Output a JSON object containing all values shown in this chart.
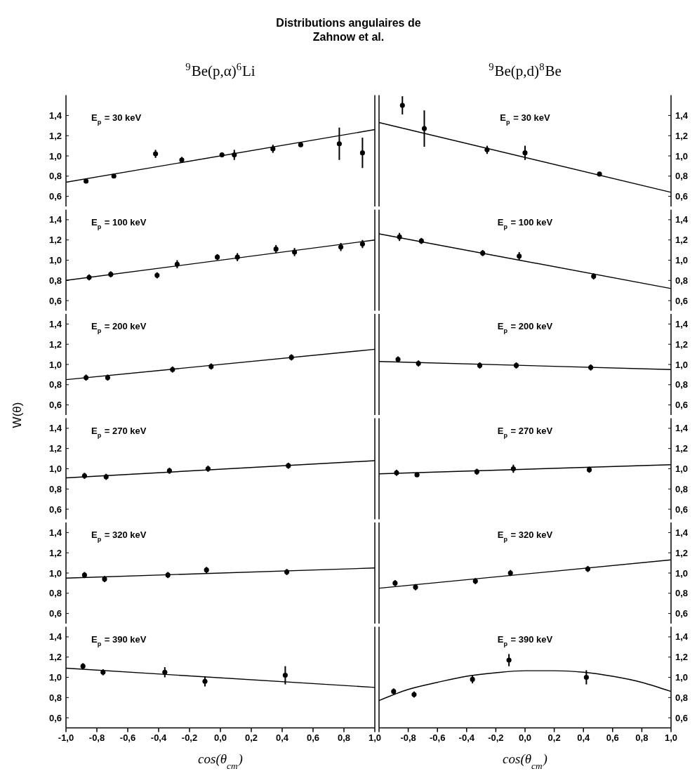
{
  "chart_data": [
    {
      "type": "scatter",
      "title": "E$_{p}$ = 30 keV",
      "annotations": [
        "Distributions angulaires de\nZahnow et al.",
        "$^{9}$Be(p,α)$^{6}$Li"
      ],
      "xlim": [
        -1,
        1
      ],
      "ylim": [
        0.5,
        1.6
      ],
      "yticks": [
        {
          "value": 0.6,
          "label": "0,6"
        },
        {
          "value": 0.8,
          "label": "0,8"
        },
        {
          "value": 1.0,
          "label": "1,0"
        },
        {
          "value": 1.2,
          "label": "1,2"
        },
        {
          "value": 1.4,
          "label": "1,4"
        }
      ],
      "tick_labels": "y",
      "series": [
        {
          "marker": "circle",
          "color": "#000000",
          "x": [
            -0.87,
            -0.69,
            -0.42,
            -0.25,
            0.01,
            0.09,
            0.34,
            0.52,
            0.77,
            0.92
          ],
          "values": [
            0.75,
            0.8,
            1.02,
            0.96,
            1.01,
            1.01,
            1.07,
            1.11,
            1.12,
            1.03
          ],
          "errors": [
            0.02,
            0.02,
            0.04,
            0.03,
            0.02,
            0.05,
            0.04,
            0.02,
            0.16,
            0.15
          ]
        },
        {
          "type": "line",
          "color": "#000000",
          "x": [
            -1,
            1
          ],
          "values": [
            0.74,
            1.26
          ]
        }
      ]
    },
    {
      "type": "scatter",
      "title": "E$_{p}$ = 30 keV",
      "annotations": [
        "$^{9}$Be(p,d)$^{8}$Be"
      ],
      "xlim": [
        -1,
        1
      ],
      "ylim": [
        0.5,
        1.6
      ],
      "yticks": [
        {
          "value": 0.6,
          "label": "0,6"
        },
        {
          "value": 0.8,
          "label": "0,8"
        },
        {
          "value": 1.0,
          "label": "1,0"
        },
        {
          "value": 1.2,
          "label": "1,2"
        },
        {
          "value": 1.4,
          "label": "1,4"
        }
      ],
      "tick_labels": "y",
      "series": [
        {
          "marker": "circle",
          "color": "#000000",
          "x": [
            -0.84,
            -0.69,
            -0.26,
            0.0,
            0.51
          ],
          "values": [
            1.5,
            1.27,
            1.06,
            1.03,
            0.82
          ],
          "errors": [
            0.09,
            0.18,
            0.04,
            0.07,
            0.02
          ]
        },
        {
          "type": "line",
          "color": "#000000",
          "x": [
            -1,
            1
          ],
          "values": [
            1.33,
            0.64
          ]
        }
      ]
    },
    {
      "type": "scatter",
      "title": "E$_{p}$ = 100 keV",
      "xlim": [
        -1,
        1
      ],
      "ylim": [
        0.5,
        1.5
      ],
      "yticks": [
        {
          "value": 0.6,
          "label": "0,6"
        },
        {
          "value": 0.8,
          "label": "0,8"
        },
        {
          "value": 1.0,
          "label": "1,0"
        },
        {
          "value": 1.2,
          "label": "1,2"
        },
        {
          "value": 1.4,
          "label": "1,4"
        }
      ],
      "tick_labels": "y",
      "series": [
        {
          "marker": "circle",
          "color": "#000000",
          "x": [
            -0.85,
            -0.71,
            -0.41,
            -0.28,
            -0.02,
            0.11,
            0.36,
            0.48,
            0.78,
            0.92
          ],
          "values": [
            0.83,
            0.86,
            0.85,
            0.96,
            1.03,
            1.03,
            1.11,
            1.08,
            1.13,
            1.16
          ],
          "errors": [
            0.03,
            0.03,
            0.03,
            0.04,
            0.03,
            0.04,
            0.04,
            0.04,
            0.04,
            0.04
          ]
        },
        {
          "type": "line",
          "color": "#000000",
          "x": [
            -1,
            1
          ],
          "values": [
            0.8,
            1.2
          ]
        }
      ]
    },
    {
      "type": "scatter",
      "title": "E$_{p}$ = 100 keV",
      "xlim": [
        -1,
        1
      ],
      "ylim": [
        0.5,
        1.5
      ],
      "yticks": [
        {
          "value": 0.6,
          "label": "0,6"
        },
        {
          "value": 0.8,
          "label": "0,8"
        },
        {
          "value": 1.0,
          "label": "1,0"
        },
        {
          "value": 1.2,
          "label": "1,2"
        },
        {
          "value": 1.4,
          "label": "1,4"
        }
      ],
      "tick_labels": "y",
      "series": [
        {
          "marker": "circle",
          "color": "#000000",
          "x": [
            -0.86,
            -0.71,
            -0.29,
            -0.04,
            0.47
          ],
          "values": [
            1.23,
            1.19,
            1.07,
            1.04,
            0.84
          ],
          "errors": [
            0.04,
            0.03,
            0.03,
            0.04,
            0.03
          ]
        },
        {
          "type": "line",
          "color": "#000000",
          "x": [
            -1,
            1
          ],
          "values": [
            1.26,
            0.72
          ]
        }
      ]
    },
    {
      "type": "scatter",
      "title": "E$_{p}$ = 200 keV",
      "ylabel": "W(θ)",
      "xlim": [
        -1,
        1
      ],
      "ylim": [
        0.5,
        1.5
      ],
      "yticks": [
        {
          "value": 0.6,
          "label": "0,6"
        },
        {
          "value": 0.8,
          "label": "0,8"
        },
        {
          "value": 1.0,
          "label": "1,0"
        },
        {
          "value": 1.2,
          "label": "1,2"
        },
        {
          "value": 1.4,
          "label": "1,4"
        }
      ],
      "tick_labels": "y",
      "series": [
        {
          "marker": "circle",
          "color": "#000000",
          "x": [
            -0.87,
            -0.73,
            -0.31,
            -0.06,
            0.46
          ],
          "values": [
            0.87,
            0.87,
            0.95,
            0.98,
            1.07
          ],
          "errors": [
            0.03,
            0.03,
            0.03,
            0.03,
            0.03
          ]
        },
        {
          "type": "line",
          "color": "#000000",
          "x": [
            -1,
            1
          ],
          "values": [
            0.85,
            1.15
          ]
        }
      ]
    },
    {
      "type": "scatter",
      "title": "E$_{p}$ = 200 keV",
      "xlim": [
        -1,
        1
      ],
      "ylim": [
        0.5,
        1.5
      ],
      "yticks": [
        {
          "value": 0.6,
          "label": "0,6"
        },
        {
          "value": 0.8,
          "label": "0,8"
        },
        {
          "value": 1.0,
          "label": "1,0"
        },
        {
          "value": 1.2,
          "label": "1,2"
        },
        {
          "value": 1.4,
          "label": "1,4"
        }
      ],
      "tick_labels": "y",
      "series": [
        {
          "marker": "circle",
          "color": "#000000",
          "x": [
            -0.87,
            -0.73,
            -0.31,
            -0.06,
            0.45
          ],
          "values": [
            1.05,
            1.01,
            0.99,
            0.99,
            0.97
          ],
          "errors": [
            0.03,
            0.03,
            0.03,
            0.03,
            0.03
          ]
        },
        {
          "type": "line",
          "color": "#000000",
          "x": [
            -1,
            1
          ],
          "values": [
            1.03,
            0.95
          ]
        }
      ]
    },
    {
      "type": "scatter",
      "title": "E$_{p}$ = 270 keV",
      "xlim": [
        -1,
        1
      ],
      "ylim": [
        0.5,
        1.5
      ],
      "yticks": [
        {
          "value": 0.6,
          "label": "0,6"
        },
        {
          "value": 0.8,
          "label": "0,8"
        },
        {
          "value": 1.0,
          "label": "1,0"
        },
        {
          "value": 1.2,
          "label": "1,2"
        },
        {
          "value": 1.4,
          "label": "1,4"
        }
      ],
      "tick_labels": "y",
      "series": [
        {
          "marker": "circle",
          "color": "#000000",
          "x": [
            -0.88,
            -0.74,
            -0.33,
            -0.08,
            0.44
          ],
          "values": [
            0.93,
            0.92,
            0.98,
            1.0,
            1.03
          ],
          "errors": [
            0.03,
            0.03,
            0.03,
            0.03,
            0.03
          ]
        },
        {
          "type": "line",
          "color": "#000000",
          "x": [
            -1,
            1
          ],
          "values": [
            0.91,
            1.08
          ]
        }
      ]
    },
    {
      "type": "scatter",
      "title": "E$_{p}$ = 270 keV",
      "xlim": [
        -1,
        1
      ],
      "ylim": [
        0.5,
        1.5
      ],
      "yticks": [
        {
          "value": 0.6,
          "label": "0,6"
        },
        {
          "value": 0.8,
          "label": "0,8"
        },
        {
          "value": 1.0,
          "label": "1,0"
        },
        {
          "value": 1.2,
          "label": "1,2"
        },
        {
          "value": 1.4,
          "label": "1,4"
        }
      ],
      "tick_labels": "y",
      "series": [
        {
          "marker": "circle",
          "color": "#000000",
          "x": [
            -0.88,
            -0.74,
            -0.33,
            -0.08,
            0.44
          ],
          "values": [
            0.96,
            0.94,
            0.97,
            1.0,
            0.99
          ],
          "errors": [
            0.03,
            0.02,
            0.03,
            0.04,
            0.03
          ]
        },
        {
          "type": "line",
          "color": "#000000",
          "x": [
            -1,
            1
          ],
          "values": [
            0.95,
            1.04
          ]
        }
      ]
    },
    {
      "type": "scatter",
      "title": "E$_{p}$ = 320 keV",
      "xlim": [
        -1,
        1
      ],
      "ylim": [
        0.5,
        1.5
      ],
      "yticks": [
        {
          "value": 0.6,
          "label": "0,6"
        },
        {
          "value": 0.8,
          "label": "0,8"
        },
        {
          "value": 1.0,
          "label": "1,0"
        },
        {
          "value": 1.2,
          "label": "1,2"
        },
        {
          "value": 1.4,
          "label": "1,4"
        }
      ],
      "tick_labels": "y",
      "series": [
        {
          "marker": "circle",
          "color": "#000000",
          "x": [
            -0.88,
            -0.75,
            -0.34,
            -0.09,
            0.43
          ],
          "values": [
            0.98,
            0.94,
            0.98,
            1.03,
            1.01
          ],
          "errors": [
            0.03,
            0.03,
            0.03,
            0.03,
            0.03
          ]
        },
        {
          "type": "line",
          "color": "#000000",
          "x": [
            -1,
            1
          ],
          "values": [
            0.95,
            1.05
          ]
        }
      ]
    },
    {
      "type": "scatter",
      "title": "E$_{p}$ = 320 keV",
      "xlim": [
        -1,
        1
      ],
      "ylim": [
        0.5,
        1.5
      ],
      "yticks": [
        {
          "value": 0.6,
          "label": "0,6"
        },
        {
          "value": 0.8,
          "label": "0,8"
        },
        {
          "value": 1.0,
          "label": "1,0"
        },
        {
          "value": 1.2,
          "label": "1,2"
        },
        {
          "value": 1.4,
          "label": "1,4"
        }
      ],
      "tick_labels": "y",
      "series": [
        {
          "marker": "circle",
          "color": "#000000",
          "x": [
            -0.89,
            -0.75,
            -0.34,
            -0.1,
            0.43
          ],
          "values": [
            0.9,
            0.86,
            0.92,
            1.0,
            1.04
          ],
          "errors": [
            0.03,
            0.03,
            0.03,
            0.03,
            0.03
          ]
        },
        {
          "type": "line",
          "color": "#000000",
          "x": [
            -1,
            1
          ],
          "values": [
            0.85,
            1.13
          ]
        }
      ]
    },
    {
      "type": "scatter",
      "title": "E$_{p}$ = 390 keV",
      "xlabel": "cos(θ$_{cm}$)",
      "xlim": [
        -1,
        1
      ],
      "ylim": [
        0.5,
        1.5
      ],
      "xticks": [
        {
          "value": -1,
          "label": "-1,0"
        },
        {
          "value": -0.8,
          "label": "-0,8"
        },
        {
          "value": -0.6,
          "label": "-0,6"
        },
        {
          "value": -0.4,
          "label": "-0,4"
        },
        {
          "value": -0.2,
          "label": "-0,2"
        },
        {
          "value": 0,
          "label": "0,0"
        },
        {
          "value": 0.2,
          "label": "0,2"
        },
        {
          "value": 0.4,
          "label": "0,4"
        },
        {
          "value": 0.6,
          "label": "0,6"
        },
        {
          "value": 0.8,
          "label": "0,8"
        },
        {
          "value": 1,
          "label": "1,0"
        }
      ],
      "yticks": [
        {
          "value": 0.6,
          "label": "0,6"
        },
        {
          "value": 0.8,
          "label": "0,8"
        },
        {
          "value": 1.0,
          "label": "1,0"
        },
        {
          "value": 1.2,
          "label": "1,2"
        },
        {
          "value": 1.4,
          "label": "1,4"
        }
      ],
      "series": [
        {
          "marker": "circle",
          "color": "#000000",
          "x": [
            -0.89,
            -0.76,
            -0.36,
            -0.1,
            0.42
          ],
          "values": [
            1.11,
            1.05,
            1.05,
            0.96,
            1.02
          ],
          "errors": [
            0.03,
            0.03,
            0.05,
            0.05,
            0.09
          ]
        },
        {
          "type": "line",
          "color": "#000000",
          "x": [
            -1,
            1
          ],
          "values": [
            1.09,
            0.9
          ]
        }
      ]
    },
    {
      "type": "scatter",
      "title": "E$_{p}$ = 390 keV",
      "xlabel": "cos(θ$_{cm}$)",
      "xlim": [
        -1,
        1
      ],
      "ylim": [
        0.5,
        1.5
      ],
      "xticks": [
        {
          "value": -1,
          "label": null
        },
        {
          "value": -0.8,
          "label": "-0,8"
        },
        {
          "value": -0.6,
          "label": "-0,6"
        },
        {
          "value": -0.4,
          "label": "-0,4"
        },
        {
          "value": -0.2,
          "label": "-0,2"
        },
        {
          "value": 0,
          "label": "0,0"
        },
        {
          "value": 0.2,
          "label": "0,2"
        },
        {
          "value": 0.4,
          "label": "0,4"
        },
        {
          "value": 0.6,
          "label": "0,6"
        },
        {
          "value": 0.8,
          "label": "0,8"
        },
        {
          "value": 1,
          "label": "1,0"
        }
      ],
      "yticks": [
        {
          "value": 0.6,
          "label": "0,6"
        },
        {
          "value": 0.8,
          "label": "0,8"
        },
        {
          "value": 1.0,
          "label": "1,0"
        },
        {
          "value": 1.2,
          "label": "1,2"
        },
        {
          "value": 1.4,
          "label": "1,4"
        }
      ],
      "series": [
        {
          "marker": "circle",
          "color": "#000000",
          "x": [
            -0.9,
            -0.76,
            -0.36,
            -0.11,
            0.42
          ],
          "values": [
            0.86,
            0.83,
            0.98,
            1.17,
            1.0
          ],
          "errors": [
            0.03,
            0.03,
            0.04,
            0.06,
            0.07
          ]
        },
        {
          "type": "line",
          "color": "#000000",
          "x": [
            -1,
            -0.8,
            -0.6,
            -0.4,
            -0.2,
            0,
            0.2,
            0.4,
            0.6,
            0.8,
            1
          ],
          "values": [
            0.77,
            0.88,
            0.95,
            1.01,
            1.045,
            1.065,
            1.065,
            1.05,
            1.01,
            0.95,
            0.86
          ]
        }
      ]
    }
  ]
}
